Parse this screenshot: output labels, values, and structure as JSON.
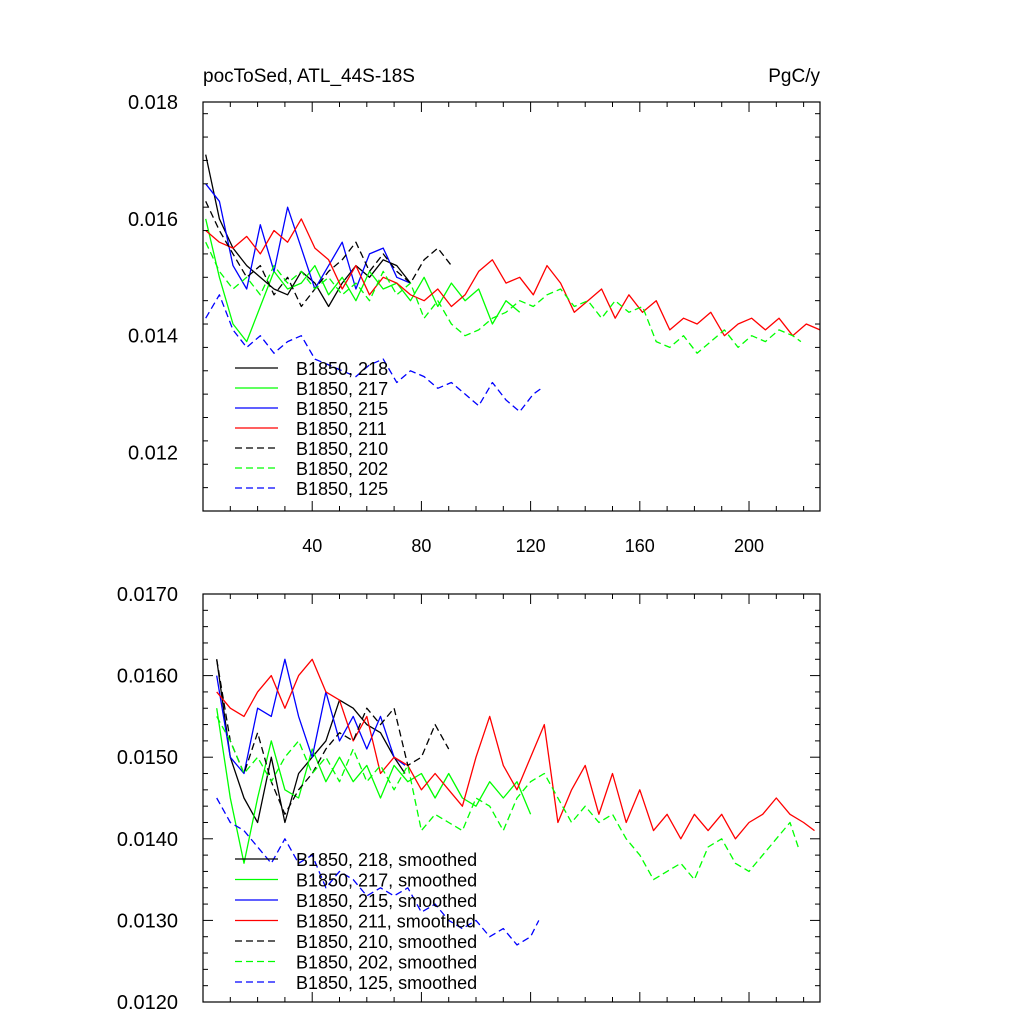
{
  "chart_data": [
    {
      "type": "line",
      "title": "pocToSed, ATL_44S-18S",
      "units": "PgC/y",
      "xlim": [
        0,
        226
      ],
      "ylim": [
        0.011,
        0.018
      ],
      "xticks": [
        40,
        80,
        120,
        160,
        200
      ],
      "xtick_labels": [
        "40",
        "80",
        "120",
        "160",
        "200"
      ],
      "yticks": [
        0.012,
        0.014,
        0.016,
        0.018
      ],
      "ytick_labels": [
        "0.012",
        "0.014",
        "0.016",
        "0.018"
      ],
      "legend_position": "lower-left",
      "series": [
        {
          "name": "B1850, 218",
          "color": "#000000",
          "dash": "solid",
          "x": [
            1,
            6,
            11,
            16,
            21,
            26,
            31,
            36,
            41,
            46,
            51,
            56,
            61,
            66,
            71,
            76
          ],
          "values": [
            0.0171,
            0.016,
            0.0155,
            0.0152,
            0.015,
            0.0148,
            0.0147,
            0.0151,
            0.0149,
            0.0145,
            0.0149,
            0.0152,
            0.015,
            0.0153,
            0.0152,
            0.0149
          ]
        },
        {
          "name": "B1850, 217",
          "color": "#00ff00",
          "dash": "solid",
          "x": [
            1,
            6,
            11,
            16,
            21,
            26,
            31,
            36,
            41,
            46,
            51,
            56,
            61,
            66,
            71,
            76,
            81,
            86,
            91,
            96,
            101,
            106,
            111,
            116
          ],
          "values": [
            0.016,
            0.015,
            0.0142,
            0.0139,
            0.0145,
            0.0151,
            0.0148,
            0.0149,
            0.0152,
            0.0147,
            0.015,
            0.0146,
            0.0151,
            0.0148,
            0.0149,
            0.0146,
            0.015,
            0.0145,
            0.0149,
            0.0146,
            0.0148,
            0.0142,
            0.0146,
            0.0144
          ]
        },
        {
          "name": "B1850, 215",
          "color": "#0000ff",
          "dash": "solid",
          "x": [
            1,
            6,
            11,
            16,
            21,
            26,
            31,
            36,
            41,
            46,
            51,
            56,
            61,
            66,
            71,
            76
          ],
          "values": [
            0.0166,
            0.0163,
            0.0152,
            0.0148,
            0.0159,
            0.0151,
            0.0162,
            0.0155,
            0.0148,
            0.0152,
            0.0156,
            0.0148,
            0.0154,
            0.0155,
            0.015,
            0.0149
          ]
        },
        {
          "name": "B1850, 211",
          "color": "#ff0000",
          "dash": "solid",
          "x": [
            1,
            6,
            11,
            16,
            21,
            26,
            31,
            36,
            41,
            46,
            51,
            56,
            61,
            66,
            71,
            76,
            81,
            86,
            91,
            96,
            101,
            106,
            111,
            116,
            121,
            126,
            131,
            136,
            141,
            146,
            151,
            156,
            161,
            166,
            171,
            176,
            181,
            186,
            191,
            196,
            201,
            206,
            211,
            216,
            221,
            226
          ],
          "values": [
            0.0158,
            0.0156,
            0.0155,
            0.0157,
            0.0154,
            0.0158,
            0.0156,
            0.016,
            0.0155,
            0.0153,
            0.0148,
            0.0152,
            0.0147,
            0.015,
            0.0149,
            0.0147,
            0.0146,
            0.0148,
            0.0145,
            0.0147,
            0.0151,
            0.0153,
            0.0149,
            0.015,
            0.0147,
            0.0152,
            0.0149,
            0.0144,
            0.0146,
            0.0148,
            0.0143,
            0.0147,
            0.0144,
            0.0146,
            0.0141,
            0.0143,
            0.0142,
            0.0144,
            0.014,
            0.0142,
            0.0143,
            0.0141,
            0.0143,
            0.014,
            0.0142,
            0.0141
          ]
        },
        {
          "name": "B1850, 210",
          "color": "#000000",
          "dash": "dashed",
          "x": [
            1,
            6,
            11,
            16,
            21,
            26,
            31,
            36,
            41,
            46,
            51,
            56,
            61,
            66,
            71,
            76,
            81,
            86,
            91
          ],
          "values": [
            0.0163,
            0.0158,
            0.0154,
            0.015,
            0.0152,
            0.0147,
            0.015,
            0.0145,
            0.0148,
            0.0151,
            0.0153,
            0.0156,
            0.0151,
            0.0154,
            0.0151,
            0.0149,
            0.0153,
            0.0155,
            0.0152
          ]
        },
        {
          "name": "B1850, 202",
          "color": "#00ff00",
          "dash": "dashed",
          "x": [
            1,
            6,
            11,
            16,
            21,
            26,
            31,
            36,
            41,
            46,
            51,
            56,
            61,
            66,
            71,
            76,
            81,
            86,
            91,
            96,
            101,
            106,
            111,
            116,
            121,
            126,
            131,
            136,
            141,
            146,
            151,
            156,
            161,
            166,
            171,
            176,
            181,
            186,
            191,
            196,
            201,
            206,
            211,
            216,
            219
          ],
          "values": [
            0.0156,
            0.0151,
            0.0148,
            0.015,
            0.0147,
            0.0152,
            0.0149,
            0.0151,
            0.0148,
            0.015,
            0.0147,
            0.0149,
            0.0146,
            0.0151,
            0.0147,
            0.0149,
            0.0143,
            0.0146,
            0.0142,
            0.014,
            0.0141,
            0.0143,
            0.0144,
            0.0146,
            0.0145,
            0.0147,
            0.0148,
            0.0145,
            0.0146,
            0.0143,
            0.0146,
            0.0144,
            0.0145,
            0.0139,
            0.0138,
            0.014,
            0.0137,
            0.0139,
            0.0141,
            0.0138,
            0.014,
            0.0139,
            0.0141,
            0.014,
            0.0139
          ]
        },
        {
          "name": "B1850, 125",
          "color": "#0000ff",
          "dash": "dashed",
          "x": [
            1,
            6,
            11,
            16,
            21,
            26,
            31,
            36,
            41,
            46,
            51,
            56,
            61,
            66,
            71,
            76,
            81,
            86,
            91,
            96,
            101,
            106,
            111,
            116,
            121,
            124
          ],
          "values": [
            0.0143,
            0.0147,
            0.0141,
            0.0138,
            0.014,
            0.0137,
            0.0139,
            0.014,
            0.0136,
            0.0135,
            0.0134,
            0.0133,
            0.0135,
            0.0136,
            0.0132,
            0.0134,
            0.0133,
            0.0131,
            0.0132,
            0.013,
            0.0128,
            0.0132,
            0.0129,
            0.0127,
            0.013,
            0.0131
          ]
        }
      ]
    },
    {
      "type": "line",
      "title": "",
      "xlim": [
        0,
        226
      ],
      "ylim": [
        0.012,
        0.017
      ],
      "xticks": [
        40,
        80,
        120,
        160,
        200
      ],
      "yticks": [
        0.012,
        0.013,
        0.014,
        0.015,
        0.016,
        0.017
      ],
      "ytick_labels": [
        "0.0120",
        "0.0130",
        "0.0140",
        "0.0150",
        "0.0160",
        "0.0170"
      ],
      "legend_position": "lower-left",
      "series": [
        {
          "name": "B1850, 218, smoothed",
          "color": "#000000",
          "dash": "solid",
          "x": [
            5,
            10,
            15,
            20,
            25,
            30,
            35,
            40,
            45,
            50,
            55,
            60,
            65,
            70,
            74
          ],
          "values": [
            0.0162,
            0.015,
            0.0145,
            0.0142,
            0.015,
            0.0142,
            0.0148,
            0.015,
            0.0152,
            0.0157,
            0.0156,
            0.0154,
            0.0153,
            0.015,
            0.0148
          ]
        },
        {
          "name": "B1850, 217, smoothed",
          "color": "#00ff00",
          "dash": "solid",
          "x": [
            5,
            10,
            15,
            20,
            25,
            30,
            35,
            40,
            45,
            50,
            55,
            60,
            65,
            70,
            75,
            80,
            85,
            90,
            95,
            100,
            105,
            110,
            115,
            120
          ],
          "values": [
            0.0156,
            0.0145,
            0.0137,
            0.0145,
            0.0152,
            0.0146,
            0.0145,
            0.0151,
            0.0147,
            0.015,
            0.0147,
            0.0149,
            0.0145,
            0.0149,
            0.0147,
            0.0148,
            0.0145,
            0.0148,
            0.0145,
            0.0144,
            0.0147,
            0.0145,
            0.0147,
            0.0143
          ]
        },
        {
          "name": "B1850, 215, smoothed",
          "color": "#0000ff",
          "dash": "solid",
          "x": [
            5,
            10,
            15,
            20,
            25,
            30,
            35,
            40,
            45,
            50,
            55,
            60,
            65,
            70,
            74
          ],
          "values": [
            0.016,
            0.015,
            0.0148,
            0.0156,
            0.0155,
            0.0162,
            0.0155,
            0.015,
            0.0158,
            0.0152,
            0.0155,
            0.0151,
            0.0155,
            0.015,
            0.0149
          ]
        },
        {
          "name": "B1850, 211, smoothed",
          "color": "#ff0000",
          "dash": "solid",
          "x": [
            5,
            10,
            15,
            20,
            25,
            30,
            35,
            40,
            45,
            50,
            55,
            60,
            65,
            70,
            75,
            80,
            85,
            90,
            95,
            100,
            105,
            110,
            115,
            120,
            125,
            130,
            135,
            140,
            145,
            150,
            155,
            160,
            165,
            170,
            175,
            180,
            185,
            190,
            195,
            200,
            205,
            210,
            215,
            220,
            224
          ],
          "values": [
            0.0158,
            0.0156,
            0.0155,
            0.0158,
            0.016,
            0.0156,
            0.016,
            0.0162,
            0.0158,
            0.0157,
            0.0152,
            0.0155,
            0.0148,
            0.015,
            0.0149,
            0.0146,
            0.0148,
            0.0146,
            0.0144,
            0.015,
            0.0155,
            0.0149,
            0.0146,
            0.015,
            0.0154,
            0.0142,
            0.0146,
            0.0149,
            0.0143,
            0.0148,
            0.0142,
            0.0146,
            0.0141,
            0.0143,
            0.014,
            0.0143,
            0.0141,
            0.0143,
            0.014,
            0.0142,
            0.0143,
            0.0145,
            0.0143,
            0.0142,
            0.0141
          ]
        },
        {
          "name": "B1850, 210, smoothed",
          "color": "#000000",
          "dash": "dashed",
          "x": [
            5,
            10,
            15,
            20,
            25,
            30,
            35,
            40,
            45,
            50,
            55,
            60,
            65,
            70,
            75,
            80,
            85,
            90
          ],
          "values": [
            0.0162,
            0.0152,
            0.0148,
            0.0153,
            0.0147,
            0.0143,
            0.0146,
            0.0148,
            0.0151,
            0.0153,
            0.0152,
            0.0156,
            0.0154,
            0.0156,
            0.0149,
            0.015,
            0.0154,
            0.0151
          ]
        },
        {
          "name": "B1850, 202, smoothed",
          "color": "#00ff00",
          "dash": "dashed",
          "x": [
            5,
            10,
            15,
            20,
            25,
            30,
            35,
            40,
            45,
            50,
            55,
            60,
            65,
            70,
            75,
            80,
            85,
            90,
            95,
            100,
            105,
            110,
            115,
            120,
            125,
            130,
            135,
            140,
            145,
            150,
            155,
            160,
            165,
            170,
            175,
            180,
            185,
            190,
            195,
            200,
            205,
            210,
            215,
            218
          ],
          "values": [
            0.0155,
            0.0152,
            0.0148,
            0.015,
            0.0147,
            0.015,
            0.0152,
            0.0148,
            0.015,
            0.0147,
            0.0151,
            0.0147,
            0.0149,
            0.0146,
            0.0149,
            0.0141,
            0.0143,
            0.0142,
            0.0141,
            0.0145,
            0.0144,
            0.0141,
            0.0145,
            0.0147,
            0.0148,
            0.0145,
            0.0142,
            0.0144,
            0.0142,
            0.0143,
            0.014,
            0.0138,
            0.0135,
            0.0136,
            0.0137,
            0.0135,
            0.0139,
            0.014,
            0.0137,
            0.0136,
            0.0138,
            0.014,
            0.0142,
            0.0139
          ]
        },
        {
          "name": "B1850, 125, smoothed",
          "color": "#0000ff",
          "dash": "dashed",
          "x": [
            5,
            10,
            15,
            20,
            25,
            30,
            35,
            40,
            45,
            50,
            55,
            60,
            65,
            70,
            75,
            80,
            85,
            90,
            95,
            100,
            105,
            110,
            115,
            120,
            123
          ],
          "values": [
            0.0145,
            0.0142,
            0.0141,
            0.0139,
            0.0137,
            0.014,
            0.0137,
            0.0138,
            0.0134,
            0.0136,
            0.0135,
            0.0133,
            0.0134,
            0.0133,
            0.0134,
            0.0131,
            0.0132,
            0.013,
            0.0129,
            0.013,
            0.0128,
            0.0129,
            0.0127,
            0.0128,
            0.013
          ]
        }
      ]
    }
  ]
}
